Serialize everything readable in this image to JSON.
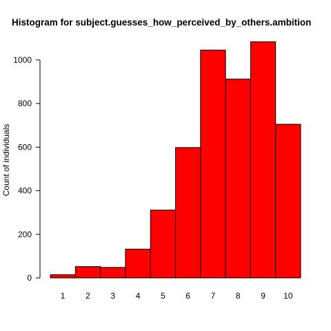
{
  "chart_data": {
    "type": "bar",
    "title": "Histogram for subject.guesses_how_perceived_by_others.ambition",
    "xlabel": "",
    "ylabel": "Count of individuals",
    "categories": [
      "1",
      "2",
      "3",
      "4",
      "5",
      "6",
      "7",
      "8",
      "9",
      "10"
    ],
    "values": [
      15,
      52,
      48,
      132,
      311,
      598,
      1045,
      912,
      1083,
      705
    ],
    "ylim": [
      0,
      1100
    ],
    "yticks": [
      "0",
      "200",
      "400",
      "600",
      "800",
      "1000"
    ],
    "grid": false,
    "legend": "none",
    "bar_color": "#ff0000",
    "bar_border_color": "#000000"
  }
}
